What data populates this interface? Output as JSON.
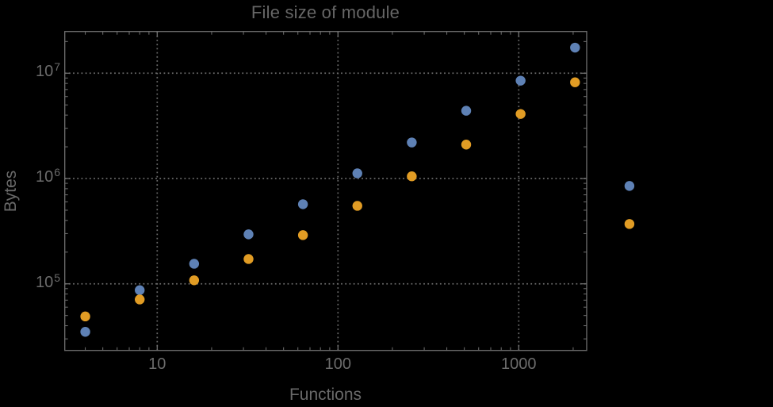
{
  "chart_data": {
    "type": "scatter",
    "title": "File size of module",
    "xlabel": "Functions",
    "ylabel": "Bytes",
    "x_scale": "log",
    "y_scale": "log",
    "xlim": [
      3.08,
      2376
    ],
    "ylim": [
      23300,
      24900000
    ],
    "grid": "dotted gridlines at powers of 10, both axes",
    "legend": "none",
    "background": "#000000",
    "x_major_ticks": [
      10,
      100,
      1000
    ],
    "x_tick_labels": [
      "10",
      "100",
      "1000"
    ],
    "y_major_ticks": [
      100000,
      1000000,
      10000000
    ],
    "y_tick_labels": [
      {
        "mantissa": "10",
        "exponent": "5"
      },
      {
        "mantissa": "10",
        "exponent": "6"
      },
      {
        "mantissa": "10",
        "exponent": "7"
      }
    ],
    "x": [
      4,
      8,
      16,
      32,
      64,
      128,
      256,
      512,
      1024,
      2048,
      4096
    ],
    "series": [
      {
        "name": "blue-series",
        "color": "#5e81b5",
        "values": [
          35000,
          87000,
          155000,
          295000,
          570000,
          1120000,
          2200000,
          4400000,
          8500000,
          17500000,
          850000
        ]
      },
      {
        "name": "orange-series",
        "color": "#e19c24",
        "values": [
          49000,
          71000,
          108000,
          172000,
          290000,
          550000,
          1050000,
          2100000,
          4100000,
          8200000,
          370000
        ]
      }
    ],
    "note": "last data pair (x=4096) lies beyond the right frame edge and is drawn unclipped"
  },
  "colors": {
    "frame": "#707070",
    "grid": "#6a6a6a",
    "tick_text": "#6b6b6b",
    "title_text": "#666666",
    "axis_label_text": "#696969"
  }
}
